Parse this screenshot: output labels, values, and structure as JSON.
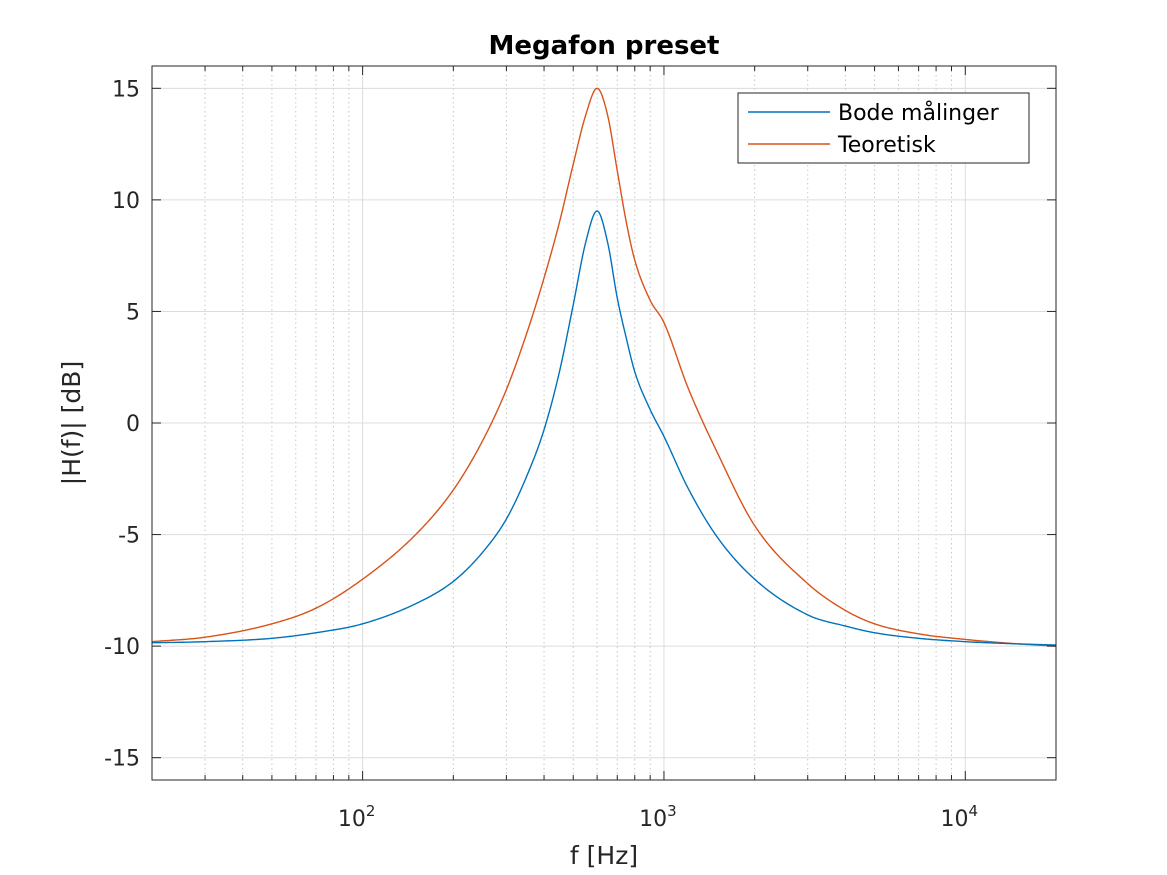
{
  "chart_data": {
    "type": "line",
    "title": "Megafon preset",
    "xlabel": "f [Hz]",
    "ylabel": "|H(f)| [dB]",
    "xscale": "log",
    "xlim": [
      20,
      20000
    ],
    "ylim": [
      -16,
      16
    ],
    "grid": true,
    "minor_grid_x": true,
    "legend_position": "top-right",
    "yticks": [
      -15,
      -10,
      -5,
      0,
      5,
      10,
      15
    ],
    "ytick_labels": [
      "-15",
      "-10",
      "-5",
      "0",
      "5",
      "10",
      "15"
    ],
    "xticks": [
      100,
      1000,
      10000
    ],
    "xtick_labels": [
      {
        "base": "10",
        "exp": "2"
      },
      {
        "base": "10",
        "exp": "3"
      },
      {
        "base": "10",
        "exp": "4"
      }
    ],
    "series": [
      {
        "name": "Bode målinger",
        "color": "#0072BD",
        "x": [
          20,
          30,
          50,
          70,
          100,
          150,
          200,
          250,
          300,
          350,
          400,
          450,
          500,
          550,
          600,
          650,
          700,
          750,
          800,
          900,
          1000,
          1200,
          1500,
          2000,
          3000,
          4000,
          5000,
          7000,
          10000,
          15000,
          20000
        ],
        "y": [
          -9.85,
          -9.8,
          -9.65,
          -9.4,
          -9.0,
          -8.1,
          -7.1,
          -5.8,
          -4.3,
          -2.4,
          -0.3,
          2.3,
          5.3,
          8.1,
          9.5,
          8.1,
          5.6,
          3.8,
          2.3,
          0.6,
          -0.6,
          -2.9,
          -5.1,
          -7.0,
          -8.6,
          -9.1,
          -9.4,
          -9.65,
          -9.8,
          -9.9,
          -9.95
        ]
      },
      {
        "name": "Teoretisk",
        "color": "#D95319",
        "x": [
          20,
          30,
          50,
          70,
          100,
          150,
          200,
          250,
          300,
          350,
          400,
          450,
          500,
          550,
          600,
          650,
          700,
          750,
          800,
          900,
          1000,
          1200,
          1500,
          2000,
          3000,
          4000,
          5000,
          7000,
          10000,
          15000,
          20000
        ],
        "y": [
          -9.8,
          -9.6,
          -9.0,
          -8.3,
          -7.0,
          -5.0,
          -3.0,
          -0.8,
          1.5,
          4.0,
          6.5,
          9.0,
          11.6,
          13.8,
          15.0,
          13.8,
          11.3,
          9.0,
          7.3,
          5.5,
          4.5,
          1.6,
          -1.3,
          -4.6,
          -7.2,
          -8.4,
          -9.0,
          -9.45,
          -9.7,
          -9.9,
          -10.0
        ]
      }
    ]
  }
}
